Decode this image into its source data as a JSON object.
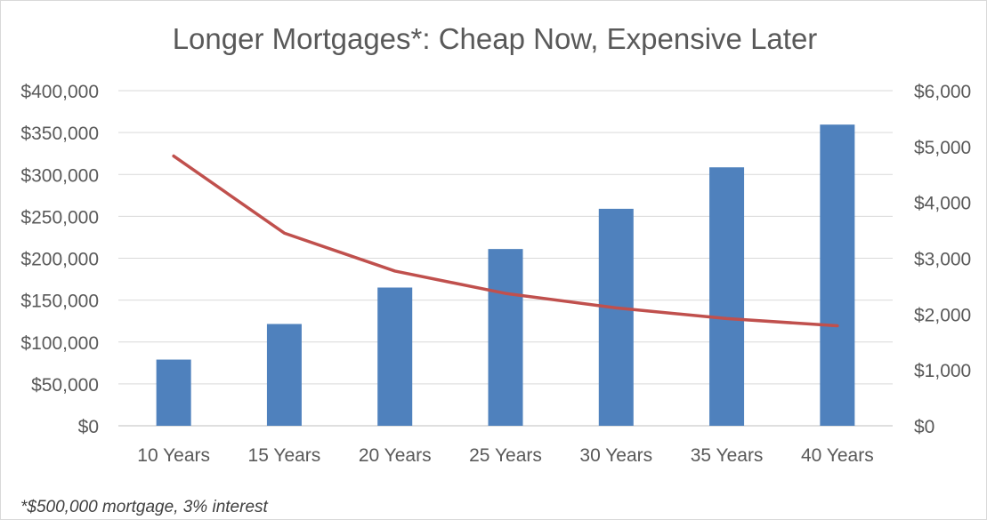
{
  "chart_data": {
    "type": "bar",
    "title": "Longer Mortgages*: Cheap Now, Expensive Later",
    "categories": [
      "10 Years",
      "15 Years",
      "20 Years",
      "25 Years",
      "30 Years",
      "35 Years",
      "40 Years"
    ],
    "series": [
      {
        "type": "bar",
        "axis": "left",
        "color": "#4f81bd",
        "values": [
          79000,
          121500,
          165000,
          211000,
          259000,
          308500,
          359500
        ]
      },
      {
        "type": "line",
        "axis": "right",
        "color": "#c0504d",
        "values": [
          4830,
          3450,
          2770,
          2370,
          2110,
          1920,
          1790
        ]
      }
    ],
    "y_left": {
      "lim": [
        0,
        400000
      ],
      "ticks": [
        0,
        50000,
        100000,
        150000,
        200000,
        250000,
        300000,
        350000,
        400000
      ],
      "tick_labels": [
        "$0",
        "$50,000",
        "$100,000",
        "$150,000",
        "$200,000",
        "$250,000",
        "$300,000",
        "$350,000",
        "$400,000"
      ]
    },
    "y_right": {
      "lim": [
        0,
        6000
      ],
      "ticks": [
        0,
        1000,
        2000,
        3000,
        4000,
        5000,
        6000
      ],
      "tick_labels": [
        "$0",
        "$1,000",
        "$2,000",
        "$3,000",
        "$4,000",
        "$5,000",
        "$6,000"
      ]
    },
    "grid": true,
    "legend": "none",
    "footnote": "*$500,000 mortgage, 3% interest"
  },
  "colors": {
    "bar": "#4f81bd",
    "line": "#c0504d",
    "grid": "#d9d9d9",
    "text": "#595959"
  }
}
